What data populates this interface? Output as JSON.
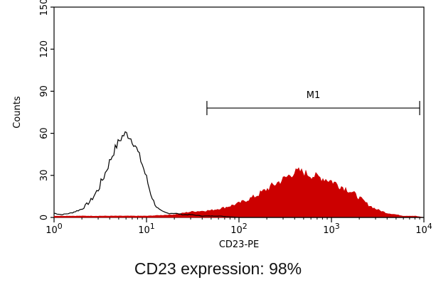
{
  "caption": "CD23 expression: 98%",
  "chart_data": {
    "type": "area",
    "title": "",
    "xlabel": "CD23-PE",
    "ylabel": "Counts",
    "x_scale": "log",
    "xlim": [
      1,
      10000
    ],
    "ylim": [
      0,
      150
    ],
    "x_ticks": [
      {
        "value": 1,
        "base": "10",
        "exp": "0"
      },
      {
        "value": 10,
        "base": "10",
        "exp": "1"
      },
      {
        "value": 100,
        "base": "10",
        "exp": "2"
      },
      {
        "value": 1000,
        "base": "10",
        "exp": "3"
      },
      {
        "value": 10000,
        "base": "10",
        "exp": "4"
      }
    ],
    "y_ticks": [
      0,
      30,
      60,
      90,
      120,
      150
    ],
    "colors": {
      "stained": "#cc0000",
      "control": "#000000"
    },
    "series": [
      {
        "style": "outline",
        "x": [
          1,
          1.2,
          1.5,
          2,
          2.5,
          3,
          3.5,
          4,
          4.5,
          5,
          5.5,
          6,
          6.5,
          7,
          7.5,
          8,
          9,
          10,
          11,
          12,
          13,
          14,
          15,
          17,
          20,
          25,
          30,
          40,
          60,
          100
        ],
        "y": [
          3,
          2,
          3,
          6,
          12,
          20,
          30,
          40,
          48,
          54,
          58,
          60,
          58,
          55,
          52,
          47,
          38,
          28,
          18,
          11,
          7,
          5,
          4,
          3,
          3,
          2,
          2,
          1,
          1,
          0
        ]
      },
      {
        "style": "filled",
        "x": [
          1,
          10,
          20,
          30,
          50,
          70,
          100,
          150,
          200,
          250,
          300,
          350,
          400,
          450,
          500,
          600,
          700,
          800,
          900,
          1000,
          1200,
          1500,
          2000,
          2500,
          3000,
          4000,
          5000,
          6000,
          8000,
          10000
        ],
        "y": [
          1,
          1,
          2,
          4,
          5,
          7,
          10,
          15,
          20,
          24,
          27,
          30,
          32,
          33,
          32,
          30,
          29,
          28,
          27,
          26,
          23,
          20,
          14,
          9,
          6,
          3,
          2,
          1,
          1,
          0
        ]
      }
    ],
    "gate": {
      "label": "M1",
      "x_start": 45,
      "x_end": 9000,
      "y": 78
    }
  }
}
